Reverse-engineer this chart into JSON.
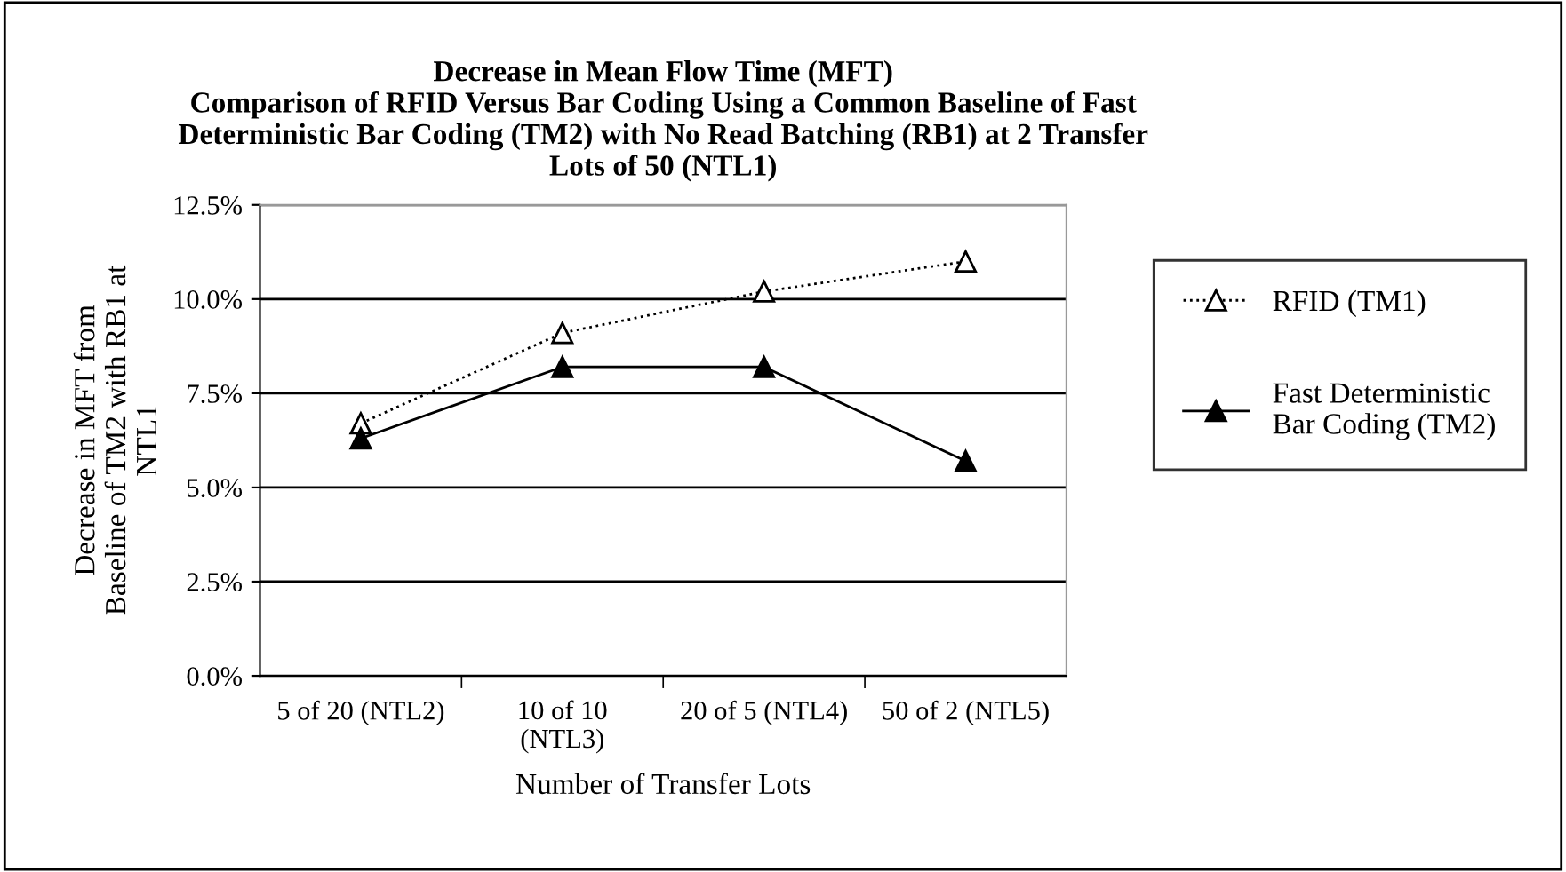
{
  "chart_data": {
    "type": "line",
    "title": "Decrease in Mean Flow Time (MFT)\nComparison of RFID Versus Bar Coding Using a Common Baseline of Fast\nDeterministic Bar Coding (TM2) with No Read Batching (RB1) at 2 Transfer\nLots of 50 (NTL1)",
    "xlabel": "Number of Transfer Lots",
    "ylabel": "Decrease in MFT from\nBaseline of TM2 with RB1 at\nNTL1",
    "categories": [
      "5 of 20 (NTL2)",
      "10 of 10\n(NTL3)",
      "20 of 5 (NTL4)",
      "50 of 2 (NTL5)"
    ],
    "series": [
      {
        "name": "RFID (TM1)",
        "color": "#000000",
        "values": [
          6.7,
          9.1,
          10.2,
          11.0
        ],
        "line_style": "dotted",
        "marker": "triangle"
      },
      {
        "name": "Fast Deterministic\nBar Coding (TM2)",
        "color": "#000000",
        "values": [
          6.3,
          8.2,
          8.2,
          5.7
        ],
        "line_style": "solid",
        "marker": "triangle"
      }
    ],
    "ylim": [
      0,
      12.5
    ],
    "yticks": [
      {
        "value": 0,
        "label": "0.0%"
      },
      {
        "value": 2.5,
        "label": "2.5%"
      },
      {
        "value": 5,
        "label": "5.0%"
      },
      {
        "value": 7.5,
        "label": "7.5%"
      },
      {
        "value": 10,
        "label": "10.0%"
      },
      {
        "value": 12.5,
        "label": "12.5%"
      }
    ],
    "grid": "y",
    "legend": "right"
  }
}
